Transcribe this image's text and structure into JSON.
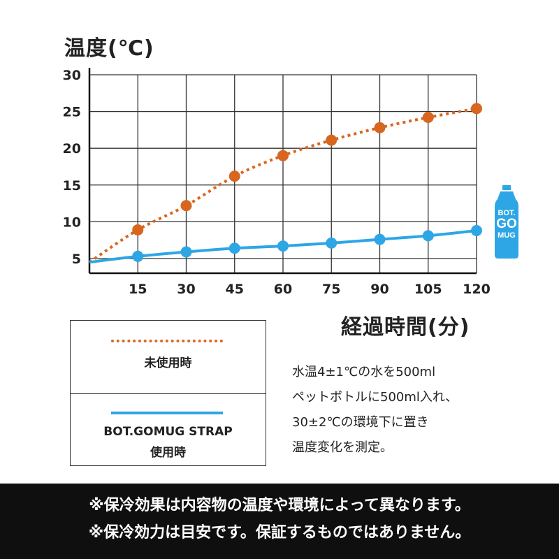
{
  "chart_data": {
    "type": "line",
    "ylabel": "温度(℃)",
    "xlabel": "経過時間(分)",
    "x": [
      0,
      15,
      30,
      45,
      60,
      75,
      90,
      105,
      120
    ],
    "xticks": [
      "15",
      "30",
      "45",
      "60",
      "75",
      "90",
      "105",
      "120"
    ],
    "yticks": [
      "5",
      "10",
      "15",
      "20",
      "25",
      "30"
    ],
    "ylim": [
      3,
      30
    ],
    "xlim": [
      0,
      120
    ],
    "grid": true,
    "series": [
      {
        "name": "未使用時",
        "style": "dotted",
        "color": "#d8661f",
        "markers_from": 1,
        "values": [
          4.5,
          8.9,
          12.2,
          16.2,
          19.0,
          21.1,
          22.8,
          24.2,
          25.4
        ]
      },
      {
        "name": "BOT.GOMUG STRAP 使用時",
        "style": "solid",
        "color": "#2ea6e6",
        "markers_from": 1,
        "values": [
          4.5,
          5.3,
          5.9,
          6.4,
          6.7,
          7.1,
          7.6,
          8.1,
          8.8
        ]
      }
    ]
  },
  "legend": {
    "row1": "未使用時",
    "row2_line1": "BOT.GOMUG STRAP",
    "row2_line2": "使用時"
  },
  "note": [
    "水温4±1℃の水を500ml",
    "ペットボトルに500ml入れ、",
    "30±2℃の環境下に置き",
    "温度変化を測定。"
  ],
  "logo": {
    "line1": "BOT.",
    "line2": "GO",
    "line3": "MUG",
    "color": "#2ea6e6"
  },
  "footer": {
    "line1": "※保冷効果は内容物の温度や環境によって異なります。",
    "line2": "※保冷効力は目安です。保証するものではありません。"
  }
}
